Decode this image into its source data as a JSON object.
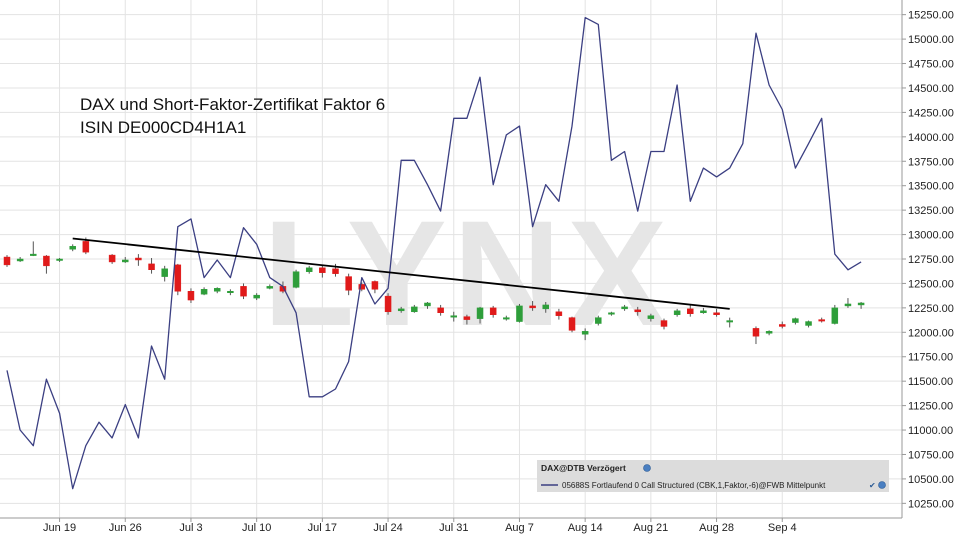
{
  "chart_data": {
    "type": "line",
    "title": "DAX und Short-Faktor-Zertifikat Faktor 6",
    "subtitle": "ISIN DE000CD4H1A1",
    "watermark": "LYNX",
    "ylim": [
      10100,
      15400
    ],
    "y_ticks": [
      10250,
      10500,
      10750,
      11000,
      11250,
      11500,
      11750,
      12000,
      12250,
      12500,
      12750,
      13000,
      13250,
      13500,
      13750,
      14000,
      14250,
      14500,
      14750,
      15000,
      15250
    ],
    "y_tick_labels": [
      "10250.00",
      "10500.00",
      "10750.00",
      "11000.00",
      "11250.00",
      "11500.00",
      "11750.00",
      "12000.00",
      "12250.00",
      "12500.00",
      "12750.00",
      "13000.00",
      "13250.00",
      "13500.00",
      "13750.00",
      "14000.00",
      "14250.00",
      "14500.00",
      "14750.00",
      "15000.00",
      "15250.00"
    ],
    "x_tick_labels": [
      "Jun 19",
      "Jun 26",
      "Jul 3",
      "Jul 10",
      "Jul 17",
      "Jul 24",
      "Jul 31",
      "Aug 7",
      "Aug 14",
      "Aug 21",
      "Aug 28",
      "Sep 4"
    ],
    "x_tick_index": [
      4,
      9,
      14,
      19,
      24,
      29,
      34,
      39,
      44,
      49,
      54,
      59
    ],
    "candle_colors": {
      "up": "#2e9e3a",
      "down": "#e01a1a",
      "neutral": "#555555"
    },
    "line_color": "#3b3f82",
    "trendline_color": "#000000",
    "trendline": {
      "from": [
        5,
        12960
      ],
      "to": [
        55,
        12240
      ]
    },
    "series": [
      {
        "name": "DAX@DTB Verzögert",
        "kind": "candlestick",
        "data": [
          {
            "i": 0,
            "o": 12770,
            "h": 12790,
            "l": 12670,
            "c": 12690
          },
          {
            "i": 1,
            "o": 12730,
            "h": 12770,
            "l": 12720,
            "c": 12750
          },
          {
            "i": 2,
            "o": 12790,
            "h": 12930,
            "l": 12780,
            "c": 12800
          },
          {
            "i": 3,
            "o": 12780,
            "h": 12790,
            "l": 12600,
            "c": 12680
          },
          {
            "i": 4,
            "o": 12740,
            "h": 12760,
            "l": 12720,
            "c": 12750
          },
          {
            "i": 5,
            "o": 12850,
            "h": 12900,
            "l": 12830,
            "c": 12880
          },
          {
            "i": 6,
            "o": 12930,
            "h": 12970,
            "l": 12800,
            "c": 12820
          },
          {
            "i": 8,
            "o": 12790,
            "h": 12800,
            "l": 12700,
            "c": 12720
          },
          {
            "i": 9,
            "o": 12720,
            "h": 12770,
            "l": 12710,
            "c": 12740
          },
          {
            "i": 10,
            "o": 12760,
            "h": 12800,
            "l": 12680,
            "c": 12740
          },
          {
            "i": 11,
            "o": 12700,
            "h": 12760,
            "l": 12600,
            "c": 12640
          },
          {
            "i": 12,
            "o": 12570,
            "h": 12680,
            "l": 12520,
            "c": 12650
          },
          {
            "i": 13,
            "o": 12690,
            "h": 12700,
            "l": 12380,
            "c": 12420
          },
          {
            "i": 14,
            "o": 12420,
            "h": 12450,
            "l": 12300,
            "c": 12330
          },
          {
            "i": 15,
            "o": 12390,
            "h": 12460,
            "l": 12380,
            "c": 12440
          },
          {
            "i": 16,
            "o": 12420,
            "h": 12460,
            "l": 12400,
            "c": 12450
          },
          {
            "i": 17,
            "o": 12410,
            "h": 12440,
            "l": 12380,
            "c": 12420
          },
          {
            "i": 18,
            "o": 12470,
            "h": 12500,
            "l": 12340,
            "c": 12370
          },
          {
            "i": 19,
            "o": 12350,
            "h": 12400,
            "l": 12330,
            "c": 12380
          },
          {
            "i": 20,
            "o": 12450,
            "h": 12490,
            "l": 12440,
            "c": 12470
          },
          {
            "i": 21,
            "o": 12470,
            "h": 12520,
            "l": 12400,
            "c": 12420
          },
          {
            "i": 22,
            "o": 12460,
            "h": 12640,
            "l": 12450,
            "c": 12620
          },
          {
            "i": 23,
            "o": 12620,
            "h": 12680,
            "l": 12600,
            "c": 12660
          },
          {
            "i": 24,
            "o": 12660,
            "h": 12680,
            "l": 12560,
            "c": 12610
          },
          {
            "i": 25,
            "o": 12650,
            "h": 12700,
            "l": 12570,
            "c": 12600
          },
          {
            "i": 26,
            "o": 12570,
            "h": 12600,
            "l": 12380,
            "c": 12430
          },
          {
            "i": 27,
            "o": 12490,
            "h": 12510,
            "l": 12420,
            "c": 12440
          },
          {
            "i": 28,
            "o": 12520,
            "h": 12530,
            "l": 12400,
            "c": 12440
          },
          {
            "i": 29,
            "o": 12370,
            "h": 12400,
            "l": 12180,
            "c": 12210
          },
          {
            "i": 30,
            "o": 12220,
            "h": 12260,
            "l": 12200,
            "c": 12240
          },
          {
            "i": 31,
            "o": 12210,
            "h": 12280,
            "l": 12200,
            "c": 12260
          },
          {
            "i": 32,
            "o": 12270,
            "h": 12310,
            "l": 12240,
            "c": 12300
          },
          {
            "i": 33,
            "o": 12250,
            "h": 12280,
            "l": 12170,
            "c": 12200
          },
          {
            "i": 34,
            "o": 12160,
            "h": 12210,
            "l": 12110,
            "c": 12170
          },
          {
            "i": 35,
            "o": 12160,
            "h": 12180,
            "l": 12080,
            "c": 12130
          },
          {
            "i": 36,
            "o": 12140,
            "h": 12260,
            "l": 12090,
            "c": 12250
          },
          {
            "i": 37,
            "o": 12250,
            "h": 12270,
            "l": 12150,
            "c": 12180
          },
          {
            "i": 38,
            "o": 12140,
            "h": 12170,
            "l": 12120,
            "c": 12150
          },
          {
            "i": 39,
            "o": 12110,
            "h": 12290,
            "l": 12100,
            "c": 12270
          },
          {
            "i": 40,
            "o": 12270,
            "h": 12320,
            "l": 12220,
            "c": 12250
          },
          {
            "i": 41,
            "o": 12240,
            "h": 12310,
            "l": 12200,
            "c": 12280
          },
          {
            "i": 42,
            "o": 12210,
            "h": 12240,
            "l": 12130,
            "c": 12170
          },
          {
            "i": 43,
            "o": 12150,
            "h": 12160,
            "l": 12000,
            "c": 12020
          },
          {
            "i": 44,
            "o": 11980,
            "h": 12040,
            "l": 11920,
            "c": 12010
          },
          {
            "i": 45,
            "o": 12090,
            "h": 12170,
            "l": 12070,
            "c": 12150
          },
          {
            "i": 46,
            "o": 12190,
            "h": 12210,
            "l": 12170,
            "c": 12200
          },
          {
            "i": 47,
            "o": 12240,
            "h": 12280,
            "l": 12220,
            "c": 12260
          },
          {
            "i": 48,
            "o": 12230,
            "h": 12260,
            "l": 12170,
            "c": 12210
          },
          {
            "i": 49,
            "o": 12140,
            "h": 12190,
            "l": 12110,
            "c": 12170
          },
          {
            "i": 50,
            "o": 12120,
            "h": 12140,
            "l": 12030,
            "c": 12060
          },
          {
            "i": 51,
            "o": 12180,
            "h": 12240,
            "l": 12160,
            "c": 12220
          },
          {
            "i": 52,
            "o": 12240,
            "h": 12280,
            "l": 12160,
            "c": 12190
          },
          {
            "i": 53,
            "o": 12200,
            "h": 12250,
            "l": 12190,
            "c": 12220
          },
          {
            "i": 54,
            "o": 12200,
            "h": 12240,
            "l": 12160,
            "c": 12180
          },
          {
            "i": 55,
            "o": 12110,
            "h": 12150,
            "l": 12050,
            "c": 12120
          },
          {
            "i": 57,
            "o": 12040,
            "h": 12060,
            "l": 11880,
            "c": 11960
          },
          {
            "i": 58,
            "o": 11990,
            "h": 12020,
            "l": 11970,
            "c": 12010
          },
          {
            "i": 59,
            "o": 12080,
            "h": 12110,
            "l": 12040,
            "c": 12060
          },
          {
            "i": 60,
            "o": 12100,
            "h": 12150,
            "l": 12080,
            "c": 12140
          },
          {
            "i": 61,
            "o": 12070,
            "h": 12120,
            "l": 12050,
            "c": 12110
          },
          {
            "i": 62,
            "o": 12130,
            "h": 12150,
            "l": 12100,
            "c": 12120
          },
          {
            "i": 63,
            "o": 12090,
            "h": 12280,
            "l": 12080,
            "c": 12250
          },
          {
            "i": 64,
            "o": 12270,
            "h": 12350,
            "l": 12250,
            "c": 12290
          },
          {
            "i": 65,
            "o": 12280,
            "h": 12310,
            "l": 12240,
            "c": 12300
          }
        ]
      },
      {
        "name": "05688S Fortlaufend 0 Call Structured (CBK,1,Faktor,-6)@FWB Mittelpunkt",
        "kind": "line",
        "data": [
          {
            "i": 0,
            "y": 11610
          },
          {
            "i": 1,
            "y": 11000
          },
          {
            "i": 2,
            "y": 10840
          },
          {
            "i": 3,
            "y": 11520
          },
          {
            "i": 4,
            "y": 11170
          },
          {
            "i": 5,
            "y": 10400
          },
          {
            "i": 6,
            "y": 10840
          },
          {
            "i": 7,
            "y": 11080
          },
          {
            "i": 8,
            "y": 10920
          },
          {
            "i": 9,
            "y": 11260
          },
          {
            "i": 10,
            "y": 10920
          },
          {
            "i": 11,
            "y": 11860
          },
          {
            "i": 12,
            "y": 11520
          },
          {
            "i": 13,
            "y": 13080
          },
          {
            "i": 14,
            "y": 13160
          },
          {
            "i": 15,
            "y": 12560
          },
          {
            "i": 16,
            "y": 12740
          },
          {
            "i": 17,
            "y": 12560
          },
          {
            "i": 18,
            "y": 13070
          },
          {
            "i": 19,
            "y": 12900
          },
          {
            "i": 20,
            "y": 12560
          },
          {
            "i": 21,
            "y": 12470
          },
          {
            "i": 22,
            "y": 12200
          },
          {
            "i": 23,
            "y": 11340
          },
          {
            "i": 24,
            "y": 11340
          },
          {
            "i": 25,
            "y": 11420
          },
          {
            "i": 26,
            "y": 11700
          },
          {
            "i": 27,
            "y": 12560
          },
          {
            "i": 28,
            "y": 12290
          },
          {
            "i": 29,
            "y": 12450
          },
          {
            "i": 30,
            "y": 13760
          },
          {
            "i": 31,
            "y": 13760
          },
          {
            "i": 32,
            "y": 13510
          },
          {
            "i": 33,
            "y": 13240
          },
          {
            "i": 34,
            "y": 14190
          },
          {
            "i": 35,
            "y": 14190
          },
          {
            "i": 36,
            "y": 14610
          },
          {
            "i": 37,
            "y": 13510
          },
          {
            "i": 38,
            "y": 14020
          },
          {
            "i": 39,
            "y": 14110
          },
          {
            "i": 40,
            "y": 13080
          },
          {
            "i": 41,
            "y": 13510
          },
          {
            "i": 42,
            "y": 13340
          },
          {
            "i": 43,
            "y": 14110
          },
          {
            "i": 44,
            "y": 15220
          },
          {
            "i": 45,
            "y": 15150
          },
          {
            "i": 46,
            "y": 13760
          },
          {
            "i": 47,
            "y": 13850
          },
          {
            "i": 48,
            "y": 13240
          },
          {
            "i": 49,
            "y": 13850
          },
          {
            "i": 50,
            "y": 13850
          },
          {
            "i": 51,
            "y": 14530
          },
          {
            "i": 52,
            "y": 13340
          },
          {
            "i": 53,
            "y": 13680
          },
          {
            "i": 54,
            "y": 13590
          },
          {
            "i": 55,
            "y": 13680
          },
          {
            "i": 56,
            "y": 13930
          },
          {
            "i": 57,
            "y": 15060
          },
          {
            "i": 58,
            "y": 14530
          },
          {
            "i": 59,
            "y": 14280
          },
          {
            "i": 60,
            "y": 13680
          },
          {
            "i": 61,
            "y": 13930
          },
          {
            "i": 62,
            "y": 14190
          },
          {
            "i": 63,
            "y": 12800
          },
          {
            "i": 64,
            "y": 12640
          },
          {
            "i": 65,
            "y": 12720
          }
        ]
      }
    ],
    "legend": {
      "position": "bottom-right",
      "header": "DAX@DTB Verzögert",
      "entry": "05688S Fortlaufend 0 Call Structured (CBK,1,Faktor,-6)@FWB Mittelpunkt"
    }
  }
}
